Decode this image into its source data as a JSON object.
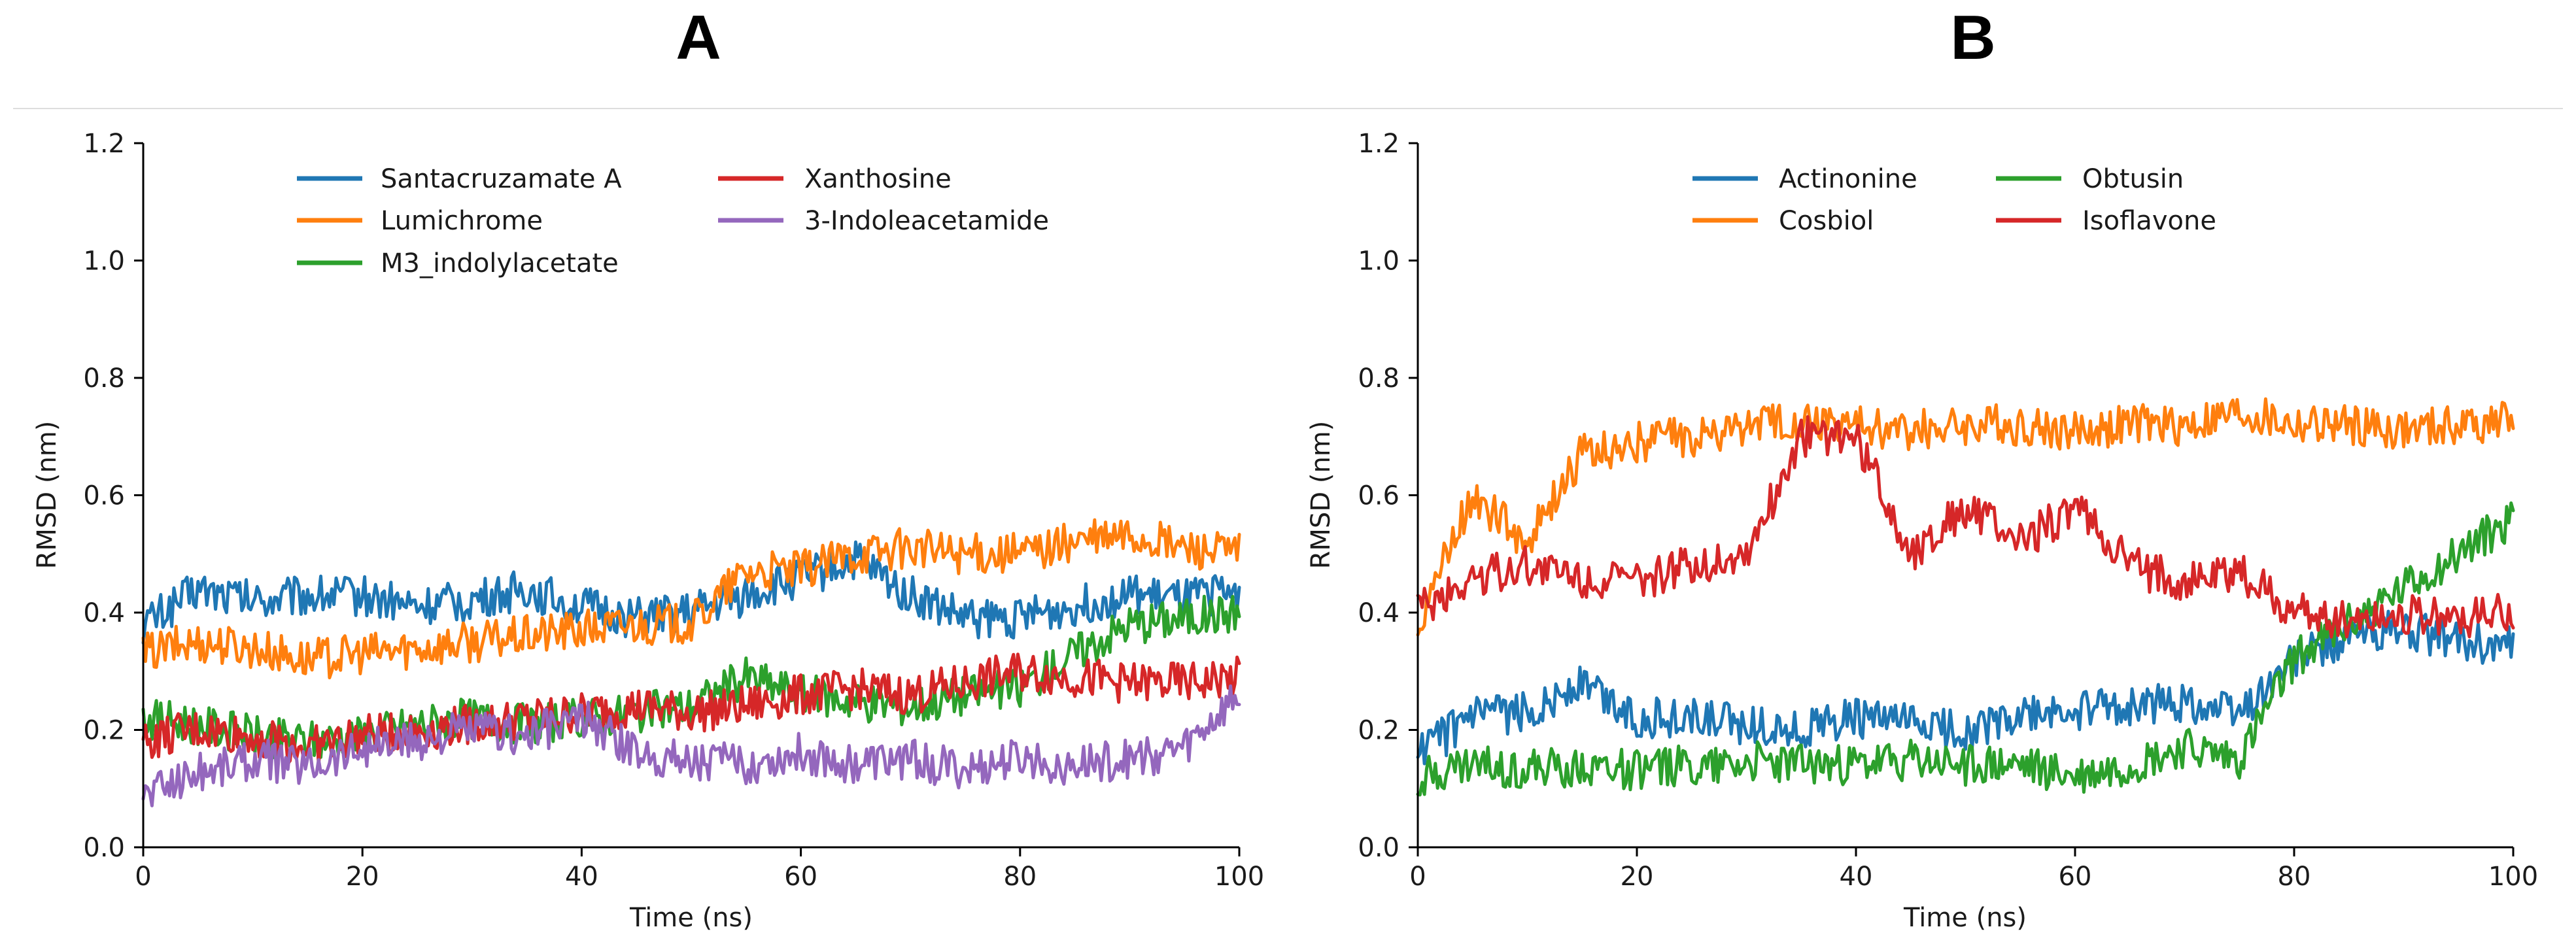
{
  "chart_data": [
    {
      "panel": "A",
      "type": "line",
      "title": "A",
      "xlabel": "Time (ns)",
      "ylabel": "RMSD (nm)",
      "xlim": [
        0,
        100
      ],
      "ylim": [
        0,
        1.2
      ],
      "xticks": [
        0,
        20,
        40,
        60,
        80,
        100
      ],
      "yticks": [
        0.0,
        0.2,
        0.4,
        0.6,
        0.8,
        1.0,
        1.2
      ],
      "xtick_labels": [
        "0",
        "20",
        "40",
        "60",
        "80",
        "100"
      ],
      "ytick_labels": [
        "0.0",
        "0.2",
        "0.4",
        "0.6",
        "0.8",
        "1.0",
        "1.2"
      ],
      "legend_position": "top-center",
      "x": [
        0,
        5,
        10,
        15,
        20,
        25,
        30,
        35,
        40,
        45,
        50,
        55,
        60,
        65,
        70,
        75,
        80,
        85,
        90,
        95,
        100
      ],
      "series": [
        {
          "name": "Santacruzamate A",
          "color": "#1f77b4",
          "values": [
            0.38,
            0.44,
            0.42,
            0.43,
            0.43,
            0.41,
            0.42,
            0.44,
            0.41,
            0.39,
            0.4,
            0.43,
            0.46,
            0.49,
            0.43,
            0.39,
            0.39,
            0.41,
            0.43,
            0.42,
            0.44
          ]
        },
        {
          "name": "Lumichrome",
          "color": "#ff7f0e",
          "values": [
            0.33,
            0.35,
            0.34,
            0.32,
            0.33,
            0.34,
            0.35,
            0.36,
            0.37,
            0.38,
            0.38,
            0.47,
            0.47,
            0.5,
            0.51,
            0.5,
            0.5,
            0.52,
            0.53,
            0.51,
            0.5
          ]
        },
        {
          "name": "M3_indolylacetate",
          "color": "#2ca02c",
          "values": [
            0.22,
            0.21,
            0.19,
            0.18,
            0.19,
            0.21,
            0.22,
            0.21,
            0.22,
            0.23,
            0.24,
            0.29,
            0.26,
            0.25,
            0.24,
            0.26,
            0.27,
            0.33,
            0.38,
            0.39,
            0.4
          ]
        },
        {
          "name": "Xanthosine",
          "color": "#d62728",
          "values": [
            0.18,
            0.2,
            0.19,
            0.17,
            0.19,
            0.2,
            0.21,
            0.22,
            0.23,
            0.24,
            0.23,
            0.24,
            0.26,
            0.27,
            0.26,
            0.28,
            0.3,
            0.29,
            0.28,
            0.28,
            0.29
          ]
        },
        {
          "name": "3-Indoleacetamide",
          "color": "#9467bd",
          "values": [
            0.09,
            0.13,
            0.15,
            0.14,
            0.17,
            0.18,
            0.2,
            0.19,
            0.22,
            0.16,
            0.15,
            0.14,
            0.16,
            0.14,
            0.15,
            0.13,
            0.15,
            0.14,
            0.15,
            0.17,
            0.26
          ]
        }
      ]
    },
    {
      "panel": "B",
      "type": "line",
      "title": "B",
      "xlabel": "Time (ns)",
      "ylabel": "RMSD (nm)",
      "xlim": [
        0,
        100
      ],
      "ylim": [
        0,
        1.2
      ],
      "xticks": [
        0,
        20,
        40,
        60,
        80,
        100
      ],
      "yticks": [
        0.0,
        0.2,
        0.4,
        0.6,
        0.8,
        1.0,
        1.2
      ],
      "xtick_labels": [
        "0",
        "20",
        "40",
        "60",
        "80",
        "100"
      ],
      "ytick_labels": [
        "0.0",
        "0.2",
        "0.4",
        "0.6",
        "0.8",
        "1.0",
        "1.2"
      ],
      "legend_position": "top-center",
      "x": [
        0,
        5,
        10,
        15,
        20,
        25,
        30,
        35,
        40,
        45,
        50,
        55,
        60,
        65,
        70,
        75,
        80,
        85,
        90,
        95,
        100
      ],
      "series": [
        {
          "name": "Actinonine",
          "color": "#1f77b4",
          "values": [
            0.16,
            0.22,
            0.23,
            0.28,
            0.22,
            0.22,
            0.21,
            0.2,
            0.22,
            0.21,
            0.2,
            0.22,
            0.23,
            0.24,
            0.25,
            0.23,
            0.32,
            0.36,
            0.37,
            0.35,
            0.34
          ]
        },
        {
          "name": "Cosbiol",
          "color": "#ff7f0e",
          "values": [
            0.38,
            0.6,
            0.52,
            0.67,
            0.69,
            0.7,
            0.72,
            0.73,
            0.72,
            0.71,
            0.72,
            0.72,
            0.71,
            0.72,
            0.72,
            0.74,
            0.72,
            0.72,
            0.71,
            0.72,
            0.73
          ]
        },
        {
          "name": "Obtusin",
          "color": "#2ca02c",
          "values": [
            0.12,
            0.14,
            0.13,
            0.14,
            0.13,
            0.14,
            0.15,
            0.14,
            0.14,
            0.15,
            0.14,
            0.14,
            0.12,
            0.14,
            0.17,
            0.15,
            0.32,
            0.38,
            0.44,
            0.5,
            0.56
          ]
        },
        {
          "name": "Isoflavone",
          "color": "#d62728",
          "values": [
            0.4,
            0.46,
            0.48,
            0.46,
            0.45,
            0.48,
            0.5,
            0.7,
            0.7,
            0.5,
            0.58,
            0.52,
            0.58,
            0.48,
            0.45,
            0.47,
            0.4,
            0.39,
            0.4,
            0.39,
            0.4
          ]
        }
      ]
    }
  ]
}
